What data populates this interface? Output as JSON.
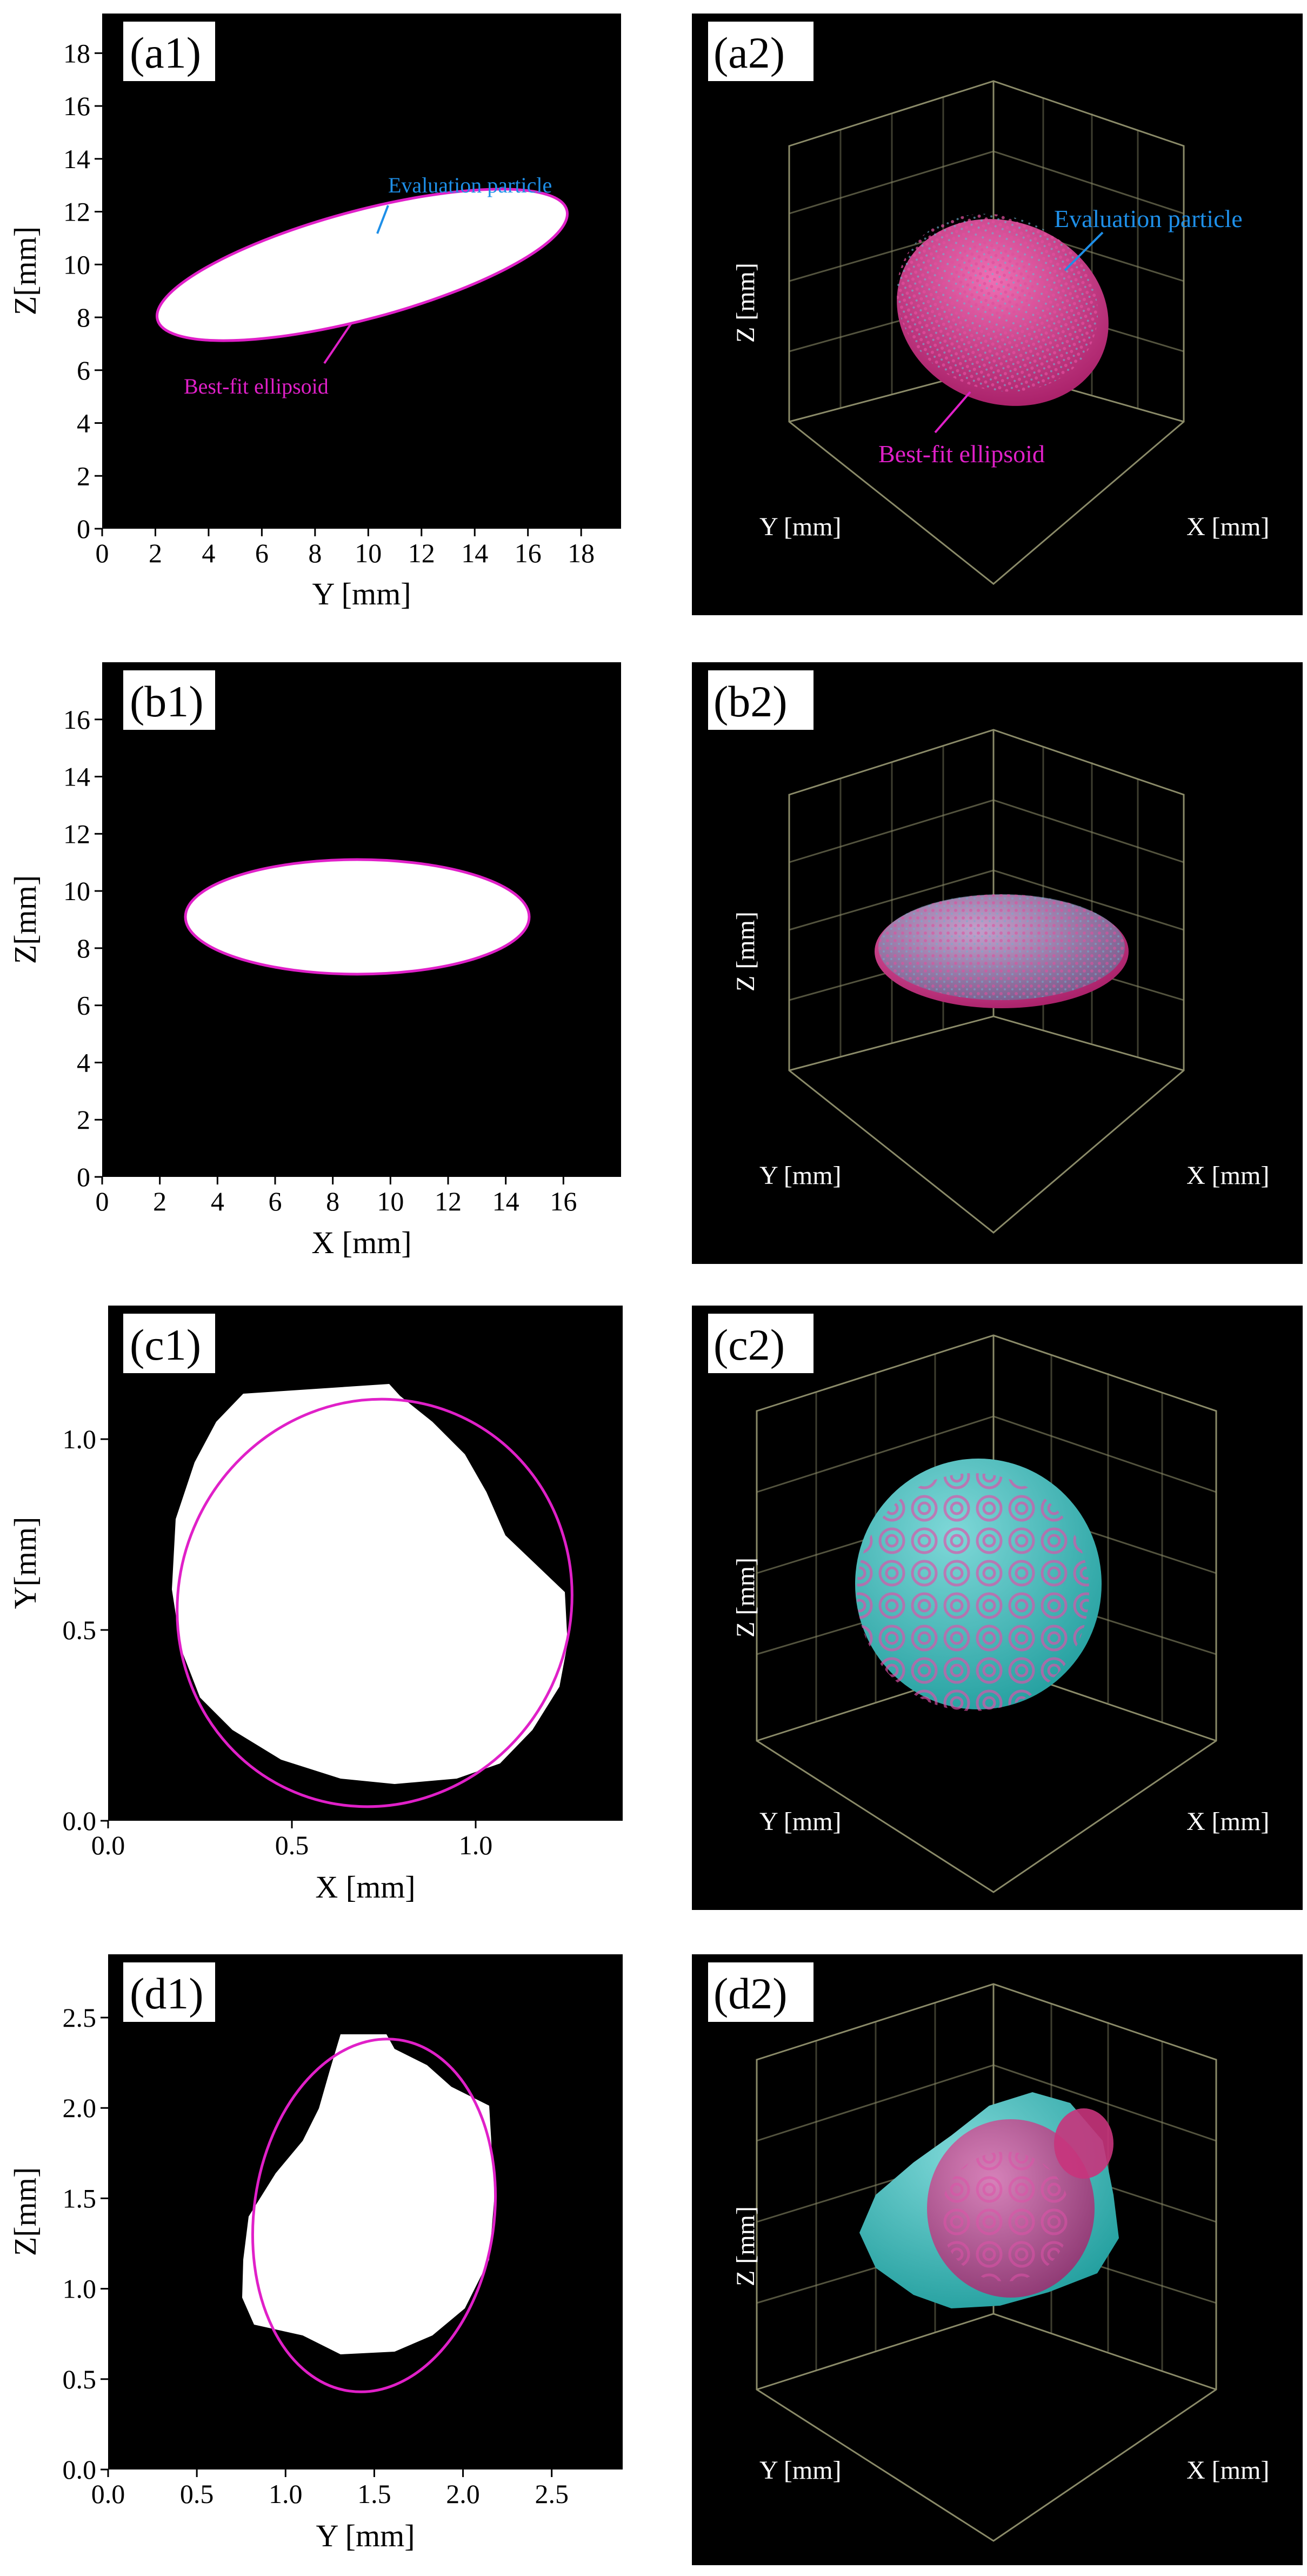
{
  "figure": {
    "panels": [
      {
        "id": "a1",
        "tag": "(a1)",
        "xlabel": "Y [mm]",
        "ylabel": "Z[mm]",
        "xticks": [
          "0",
          "2",
          "4",
          "6",
          "8",
          "10",
          "12",
          "14",
          "16",
          "18"
        ],
        "yticks": [
          "0",
          "2",
          "4",
          "6",
          "8",
          "10",
          "12",
          "14",
          "16",
          "18"
        ],
        "annotations": [
          "Evaluation particle",
          "Best-fit ellipsoid"
        ]
      },
      {
        "id": "a2",
        "tag": "(a2)",
        "xlabel": "X [mm]",
        "ylabel": "Y [mm]",
        "zlabel": "Z [mm]",
        "annotations": [
          "Evaluation particle",
          "Best-fit ellipsoid"
        ]
      },
      {
        "id": "b1",
        "tag": "(b1)",
        "xlabel": "X [mm]",
        "ylabel": "Z[mm]",
        "xticks": [
          "0",
          "2",
          "4",
          "6",
          "8",
          "10",
          "12",
          "14",
          "16"
        ],
        "yticks": [
          "0",
          "2",
          "4",
          "6",
          "8",
          "10",
          "12",
          "14",
          "16"
        ]
      },
      {
        "id": "b2",
        "tag": "(b2)",
        "xlabel": "X [mm]",
        "ylabel": "Y [mm]",
        "zlabel": "Z [mm]"
      },
      {
        "id": "c1",
        "tag": "(c1)",
        "xlabel": "X [mm]",
        "ylabel": "Y[mm]",
        "xticks": [
          "0.0",
          "0.5",
          "1.0"
        ],
        "yticks": [
          "0.0",
          "0.5",
          "1.0"
        ]
      },
      {
        "id": "c2",
        "tag": "(c2)",
        "xlabel": "X [mm]",
        "ylabel": "Y [mm]",
        "zlabel": "Z [mm]"
      },
      {
        "id": "d1",
        "tag": "(d1)",
        "xlabel": "Y [mm]",
        "ylabel": "Z[mm]",
        "xticks": [
          "0.0",
          "0.5",
          "1.0",
          "1.5",
          "2.0",
          "2.5"
        ],
        "yticks": [
          "0.0",
          "0.5",
          "1.0",
          "1.5",
          "2.0",
          "2.5"
        ]
      },
      {
        "id": "d2",
        "tag": "(d2)",
        "xlabel": "X [mm]",
        "ylabel": "Y [mm]",
        "zlabel": "Z [mm]"
      }
    ]
  },
  "colors": {
    "background": "#000000",
    "particle": "#ffffff",
    "ellipse": "#e020c8",
    "evaluation_label": "#1e8fe8",
    "bestfit_label": "#e020c8",
    "particle_3d": "#6fa8c8",
    "ellipsoid_3d": "#d63a8c",
    "grid_3d": "#8a8a68"
  },
  "chart_data": [
    {
      "panel": "a1",
      "type": "scatter",
      "title": "",
      "xlabel": "Y [mm]",
      "ylabel": "Z[mm]",
      "xlim": [
        0,
        19.5
      ],
      "ylim": [
        0,
        19.5
      ],
      "shape": "ellipse",
      "center": [
        9.8,
        10.0
      ],
      "semi_axes": [
        8.0,
        2.05
      ],
      "tilt_deg": -15
    },
    {
      "panel": "b1",
      "type": "scatter",
      "title": "",
      "xlabel": "X [mm]",
      "ylabel": "Z[mm]",
      "xlim": [
        0,
        18
      ],
      "ylim": [
        0,
        18
      ],
      "shape": "ellipse",
      "center": [
        8.85,
        9.1
      ],
      "semi_axes": [
        5.95,
        2.0
      ],
      "tilt_deg": 0
    },
    {
      "panel": "c1",
      "type": "scatter",
      "title": "",
      "xlabel": "X [mm]",
      "ylabel": "Y[mm]",
      "xlim": [
        0,
        1.4
      ],
      "ylim": [
        0,
        1.35
      ],
      "shape": "ellipse",
      "center": [
        0.7,
        0.66
      ],
      "semi_axes": [
        0.53,
        0.56
      ],
      "tilt_deg": 25
    },
    {
      "panel": "d1",
      "type": "scatter",
      "title": "",
      "xlabel": "Y [mm]",
      "ylabel": "Z[mm]",
      "xlim": [
        0,
        2.9
      ],
      "ylim": [
        0,
        2.85
      ],
      "shape": "ellipse",
      "center": [
        1.5,
        1.43
      ],
      "semi_axes": [
        0.68,
        0.99
      ],
      "tilt_deg": -7
    }
  ]
}
